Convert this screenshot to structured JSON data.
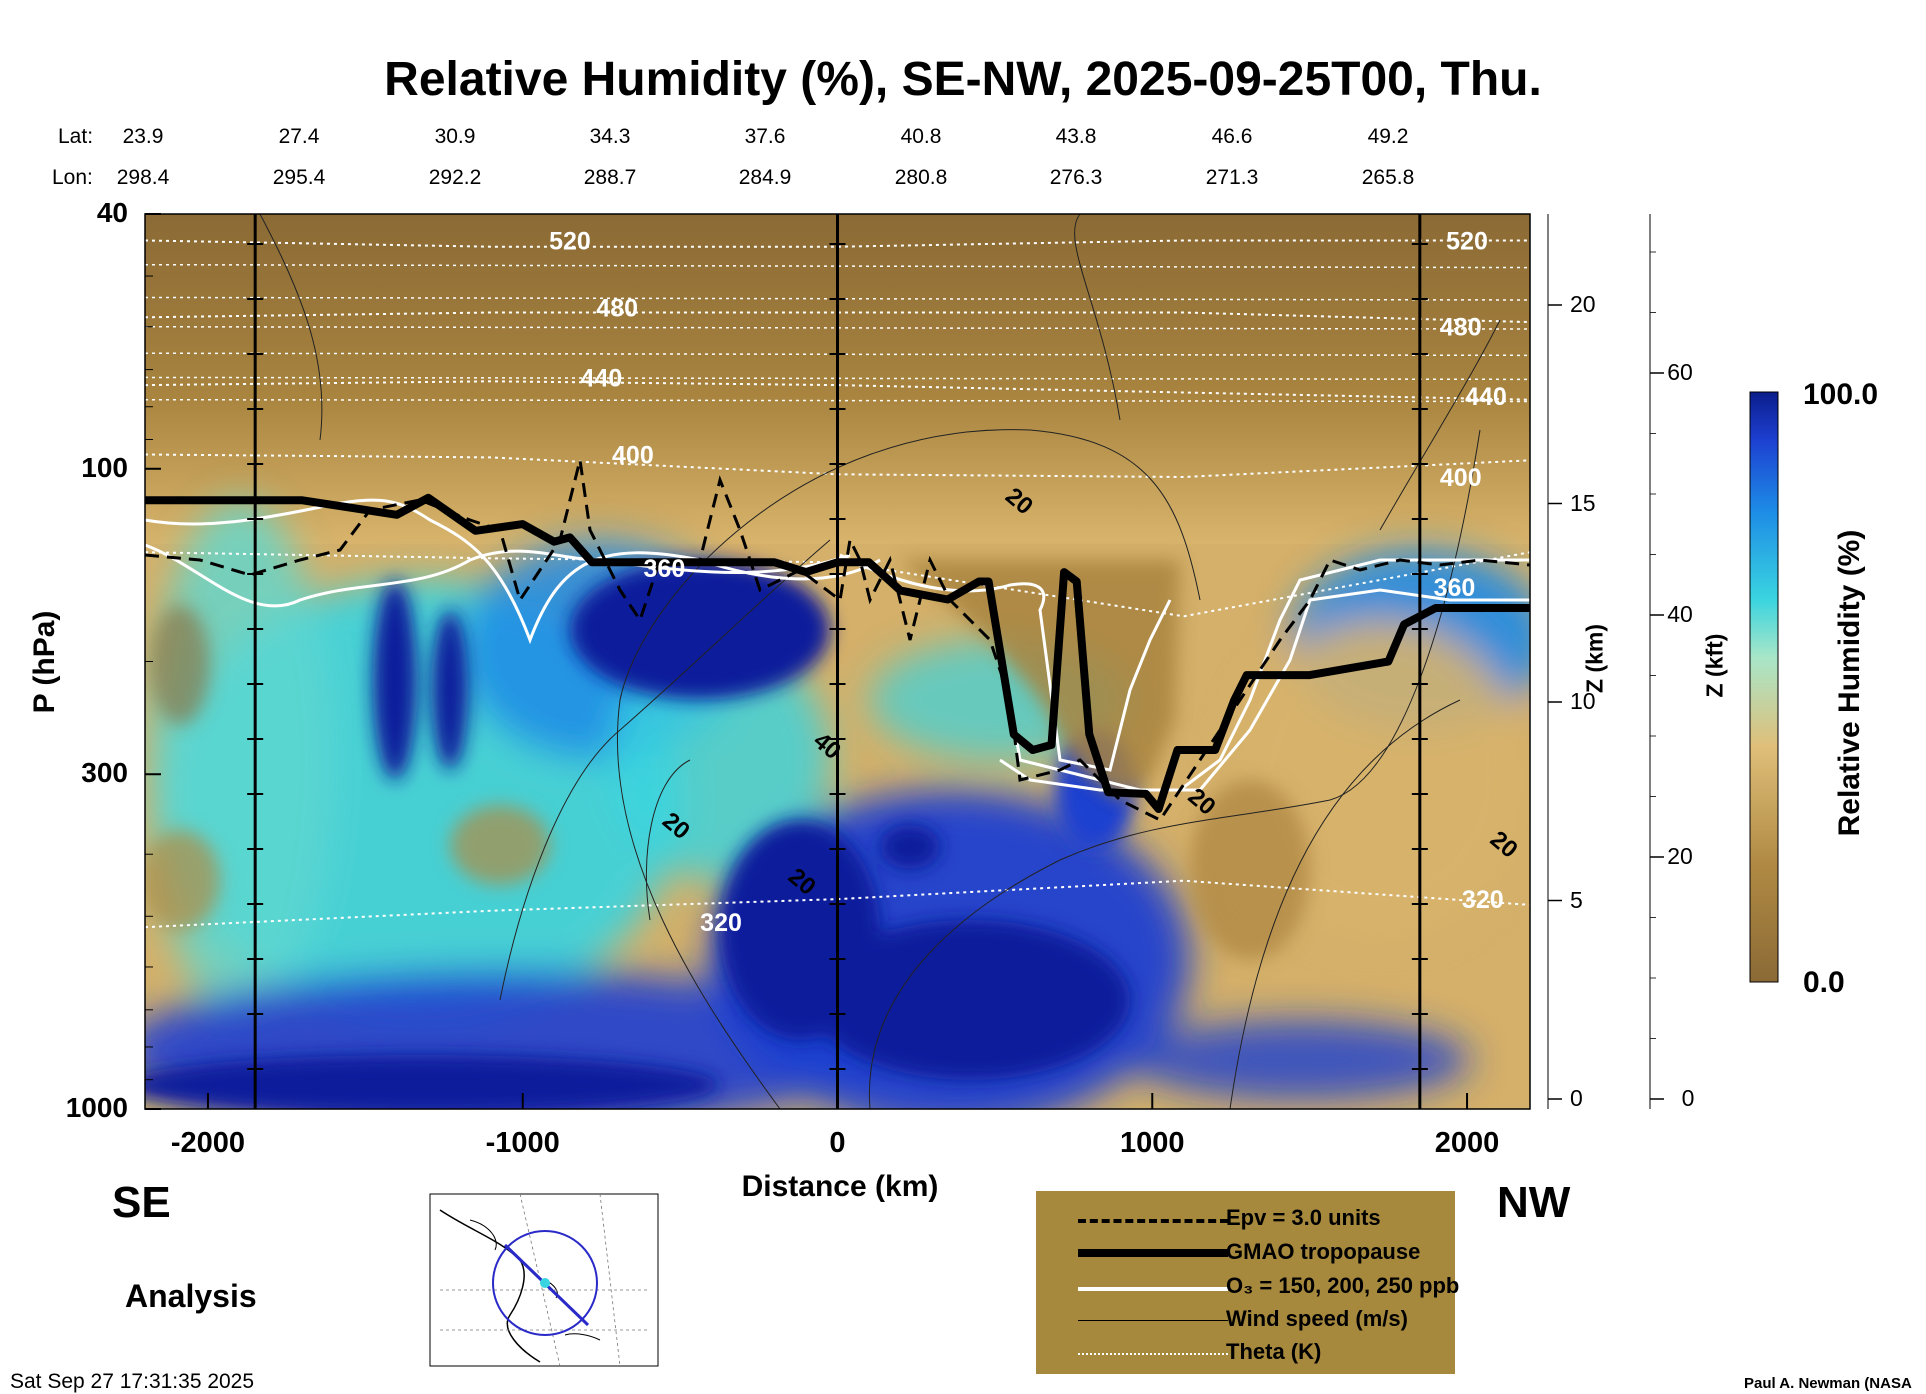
{
  "title": "Relative Humidity (%), SE-NW, 2025-09-25T00, Thu.",
  "header": {
    "lat_label": "Lat:",
    "lon_label": "Lon:",
    "lat_values": [
      "23.9",
      "27.4",
      "30.9",
      "34.3",
      "37.6",
      "40.8",
      "43.8",
      "46.6",
      "49.2"
    ],
    "lon_values": [
      "298.4",
      "295.4",
      "292.2",
      "288.7",
      "284.9",
      "280.8",
      "276.3",
      "271.3",
      "265.8"
    ]
  },
  "labels": {
    "left_end": "SE",
    "right_end": "NW",
    "analysis": "Analysis",
    "timestamp": "Sat Sep 27 17:31:35 2025",
    "credit": "Paul A. Newman (NASA"
  },
  "legend": {
    "items": [
      {
        "label": "Epv = 3.0 units",
        "style": "dashed-black"
      },
      {
        "label": "GMAO tropopause",
        "style": "thick-black"
      },
      {
        "label": "O₃ = 150, 200, 250 ppb",
        "style": "white"
      },
      {
        "label": "Wind speed (m/s)",
        "style": "thin-black"
      },
      {
        "label": "Theta (K)",
        "style": "dotted-white"
      }
    ]
  },
  "colors": {
    "dry": "#8b6a35",
    "tan": "#c9a25d",
    "cyan": "#39d4e0",
    "blue": "#1d4fd6",
    "navy": "#0a1d9b",
    "legend_bg": "#a7893d"
  },
  "chart_data": {
    "type": "heatmap",
    "title": "Relative Humidity (%), SE-NW, 2025-09-25T00, Thu.",
    "xlabel": "Distance (km)",
    "ylabel": "P (hPa)",
    "right_axis1_label": "Z (km)",
    "right_axis2_label": "Z (kft)",
    "colorbar_label": "Relative Humidity (%)",
    "xlim": [
      -2200,
      2200
    ],
    "x_ticks": [
      -2000,
      -1000,
      0,
      1000,
      2000
    ],
    "x_tick_labels": [
      "-2000",
      "-1000",
      "0",
      "1000",
      "2000"
    ],
    "y_scale": "log",
    "ylim": [
      1000,
      40
    ],
    "y_ticks": [
      40,
      100,
      300,
      1000
    ],
    "y_tick_labels": [
      "40",
      "100",
      "300",
      "1000"
    ],
    "z_km_ticks": [
      0,
      5,
      10,
      15,
      20
    ],
    "z_km_tick_labels": [
      "0",
      "5",
      "10",
      "15",
      "20"
    ],
    "z_kft_ticks": [
      0,
      20,
      40,
      60
    ],
    "z_kft_tick_labels": [
      "0",
      "20",
      "40",
      "60"
    ],
    "colorbar_range": [
      0.0,
      100.0
    ],
    "colorbar_labels": [
      "100.0",
      "0.0"
    ],
    "vertical_lines_km": [
      -1850,
      0,
      1850
    ],
    "theta_contours": [
      {
        "label": "520",
        "p": [
          44,
          45,
          45,
          44,
          44
        ]
      },
      {
        "label": "480",
        "p": [
          58,
          57,
          57,
          57,
          59
        ]
      },
      {
        "label": "440",
        "p": [
          74,
          73,
          74,
          76,
          78
        ]
      },
      {
        "label": "400",
        "p": [
          95,
          96,
          102,
          103,
          97
        ]
      },
      {
        "label": "360",
        "p": [
          135,
          138,
          140,
          170,
          135
        ]
      },
      {
        "label": "320",
        "p": [
          520,
          490,
          470,
          440,
          480
        ]
      }
    ],
    "theta_x": [
      -2200,
      -1100,
      0,
      1100,
      2200
    ],
    "theta_label_positions": [
      {
        "label": "520",
        "x": -850,
        "p": 44
      },
      {
        "label": "520",
        "x": 2000,
        "p": 44
      },
      {
        "label": "480",
        "x": -700,
        "p": 56
      },
      {
        "label": "480",
        "x": 1980,
        "p": 60
      },
      {
        "label": "440",
        "x": -750,
        "p": 72
      },
      {
        "label": "440",
        "x": 2060,
        "p": 77
      },
      {
        "label": "400",
        "x": -650,
        "p": 95
      },
      {
        "label": "400",
        "x": 1980,
        "p": 103
      },
      {
        "label": "360",
        "x": -550,
        "p": 143
      },
      {
        "label": "360",
        "x": 1960,
        "p": 153
      },
      {
        "label": "320",
        "x": -370,
        "p": 510
      },
      {
        "label": "320",
        "x": 2050,
        "p": 470
      }
    ],
    "wind_labels": [
      {
        "label": "20",
        "x": 580,
        "p": 112
      },
      {
        "label": "40",
        "x": -30,
        "p": 270
      },
      {
        "label": "20",
        "x": -510,
        "p": 360
      },
      {
        "label": "20",
        "x": -110,
        "p": 440
      },
      {
        "label": "20",
        "x": 1160,
        "p": 330
      },
      {
        "label": "20",
        "x": 2120,
        "p": 385
      }
    ],
    "tropopause": {
      "x": [
        -2200,
        -1900,
        -1700,
        -1400,
        -1300,
        -1150,
        -1000,
        -900,
        -850,
        -780,
        -700,
        -500,
        -200,
        -100,
        0,
        100,
        200,
        350,
        450,
        480,
        560,
        620,
        680,
        720,
        760,
        800,
        860,
        980,
        1020,
        1080,
        1200,
        1260,
        1300,
        1500,
        1750,
        1800,
        1900,
        2200
      ],
      "p": [
        112,
        112,
        112,
        118,
        111,
        125,
        122,
        130,
        128,
        140,
        140,
        140,
        140,
        145,
        140,
        140,
        155,
        160,
        150,
        150,
        260,
        275,
        270,
        145,
        150,
        260,
        320,
        322,
        340,
        275,
        275,
        230,
        210,
        210,
        200,
        175,
        165,
        165
      ]
    },
    "colormap_stops": [
      {
        "rh": 0.0,
        "color": "#8b6a35"
      },
      {
        "rh": 20.0,
        "color": "#b08a44"
      },
      {
        "rh": 40.0,
        "color": "#dfbf7a"
      },
      {
        "rh": 55.0,
        "color": "#a8e6c8"
      },
      {
        "rh": 65.0,
        "color": "#39d4e0"
      },
      {
        "rh": 80.0,
        "color": "#1d8be6"
      },
      {
        "rh": 92.0,
        "color": "#1d3fd0"
      },
      {
        "rh": 100.0,
        "color": "#0a1d8b"
      }
    ],
    "legend_placement": "bottom-center"
  }
}
